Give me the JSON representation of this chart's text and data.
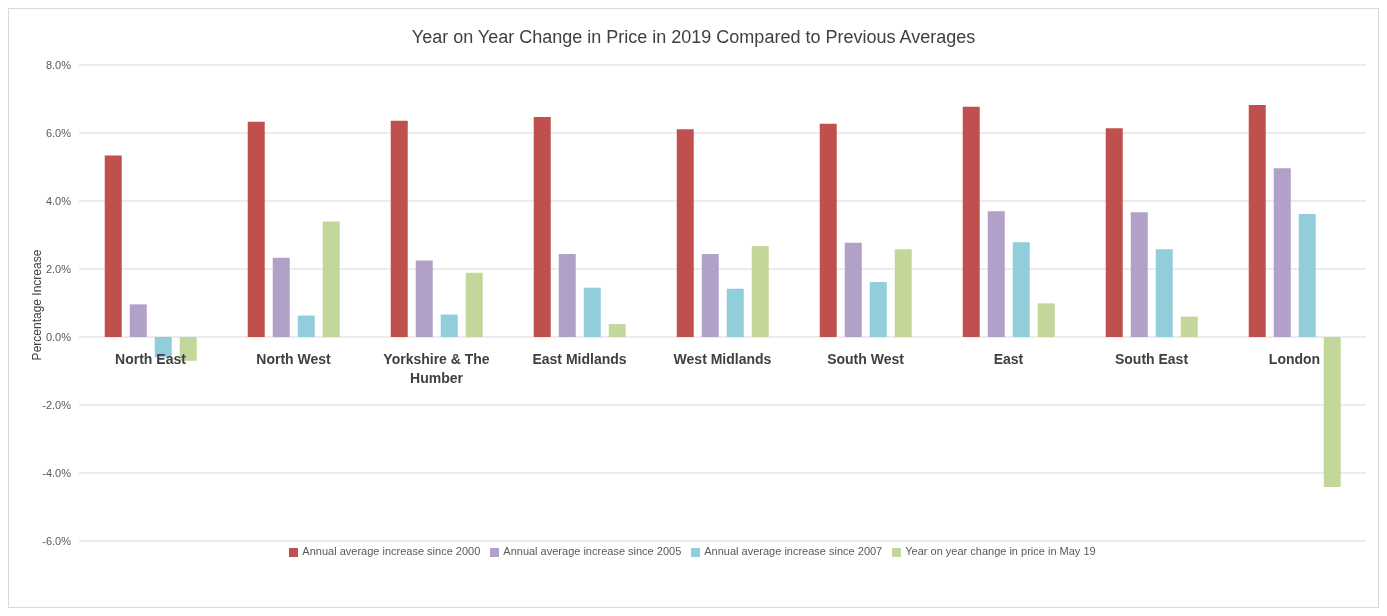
{
  "chart_data": {
    "type": "bar",
    "title": "Year on Year Change in Price in 2019 Compared to Previous Averages",
    "ylabel": "Percentage Increase",
    "categories": [
      "North East",
      "North West",
      "Yorkshire & The Humber",
      "East Midlands",
      "West Midlands",
      "South West",
      "East",
      "South East",
      "London"
    ],
    "series": [
      {
        "name": "Annual average increase since 2000",
        "color": "#c0504d",
        "values": [
          5.34,
          6.33,
          6.36,
          6.47,
          6.11,
          6.27,
          6.77,
          6.14,
          6.82
        ]
      },
      {
        "name": "Annual average increase since 2005",
        "color": "#b1a0c7",
        "values": [
          0.96,
          2.33,
          2.25,
          2.44,
          2.44,
          2.77,
          3.7,
          3.67,
          4.96
        ]
      },
      {
        "name": "Annual average increase since 2007",
        "color": "#92cddc",
        "values": [
          -0.6,
          0.63,
          0.66,
          1.45,
          1.42,
          1.62,
          2.79,
          2.58,
          3.62
        ]
      },
      {
        "name": "Year on year change in price in May 19",
        "color": "#c4d79b",
        "values": [
          -0.7,
          3.4,
          1.89,
          0.38,
          2.68,
          2.58,
          0.99,
          0.6,
          -4.41
        ]
      }
    ],
    "ylim": [
      -6,
      8
    ],
    "yticks": [
      {
        "value": -6,
        "label": "-6.0%"
      },
      {
        "value": -4,
        "label": "-4.0%"
      },
      {
        "value": -2,
        "label": "-2.0%"
      },
      {
        "value": 0,
        "label": "0.0%"
      },
      {
        "value": 2,
        "label": "2.0%"
      },
      {
        "value": 4,
        "label": "4.0%"
      },
      {
        "value": 6,
        "label": "6.0%"
      },
      {
        "value": 8,
        "label": "8.0%"
      }
    ],
    "grid": "y",
    "legend": "bottom"
  }
}
